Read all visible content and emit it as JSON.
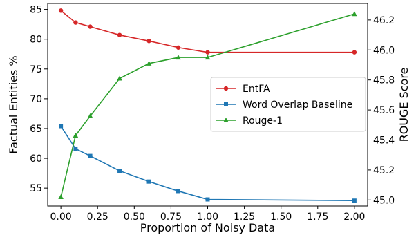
{
  "chart_data": {
    "type": "line",
    "xlabel": "Proportion of Noisy Data",
    "ylabel_left": "Factual Entities %",
    "ylabel_right": "ROUGE Score",
    "xlim": [
      -0.09,
      2.09
    ],
    "ylim_left": [
      52.0,
      86.0
    ],
    "ylim_right": [
      44.96,
      46.31
    ],
    "xticks": [
      0.0,
      0.25,
      0.5,
      0.75,
      1.0,
      1.25,
      1.5,
      1.75,
      2.0
    ],
    "xtick_labels": [
      "0.00",
      "0.25",
      "0.50",
      "0.75",
      "1.00",
      "1.25",
      "1.50",
      "1.75",
      "2.00"
    ],
    "yticks_left": [
      55,
      60,
      65,
      70,
      75,
      80,
      85
    ],
    "ytick_labels_left": [
      "55",
      "60",
      "65",
      "70",
      "75",
      "80",
      "85"
    ],
    "yticks_right": [
      45.0,
      45.2,
      45.4,
      45.6,
      45.8,
      46.0,
      46.2
    ],
    "ytick_labels_right": [
      "45.0",
      "45.2",
      "45.4",
      "45.6",
      "45.8",
      "46.0",
      "46.2"
    ],
    "legend_position": "center-right",
    "grid": false,
    "series": [
      {
        "name": "EntFA",
        "axis": "left",
        "color": "#d62728",
        "marker": "circle",
        "x": [
          0.0,
          0.1,
          0.2,
          0.4,
          0.6,
          0.8,
          1.0,
          2.0
        ],
        "y": [
          84.8,
          82.8,
          82.1,
          80.7,
          79.7,
          78.6,
          77.8,
          77.8
        ]
      },
      {
        "name": "Word Overlap Baseline",
        "axis": "left",
        "color": "#1f77b4",
        "marker": "square",
        "x": [
          0.0,
          0.1,
          0.2,
          0.4,
          0.6,
          0.8,
          1.0,
          2.0
        ],
        "y": [
          65.4,
          61.6,
          60.4,
          57.9,
          56.1,
          54.5,
          53.1,
          52.9
        ]
      },
      {
        "name": "Rouge-1",
        "axis": "right",
        "color": "#2ca02c",
        "marker": "triangle",
        "x": [
          0.0,
          0.1,
          0.2,
          0.4,
          0.6,
          0.8,
          1.0,
          2.0
        ],
        "y": [
          45.02,
          45.43,
          45.56,
          45.81,
          45.91,
          45.95,
          45.95,
          46.24
        ]
      }
    ]
  }
}
